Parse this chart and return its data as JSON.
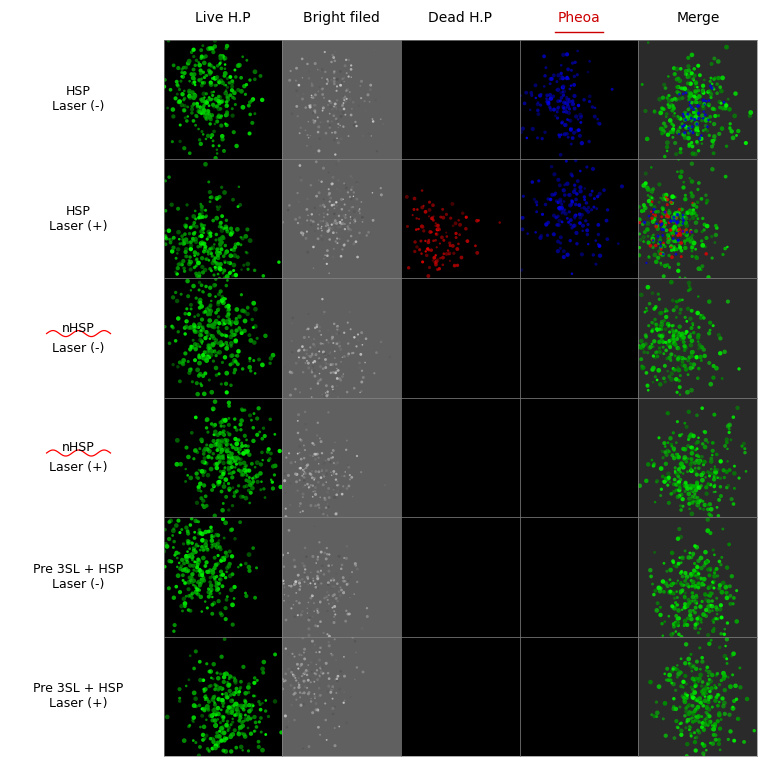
{
  "col_headers": [
    "Live H.P",
    "Bright filed",
    "Dead H.P",
    "Pheoa",
    "Merge"
  ],
  "row_labels": [
    {
      "text": "HSP\nLaser (-)",
      "underline": false
    },
    {
      "text": "HSP\nLaser (+)",
      "underline": false
    },
    {
      "text": "nHSP\nLaser (-)",
      "underline": true
    },
    {
      "text": "nHSP\nLaser (+)",
      "underline": true
    },
    {
      "text": "Pre 3SL + HSP\nLaser (-)",
      "underline": false
    },
    {
      "text": "Pre 3SL + HSP\nLaser (+)",
      "underline": false
    }
  ],
  "n_rows": 6,
  "n_cols": 5,
  "header_color": "#000000",
  "pheoa_color": "#cc0000",
  "grid_color": "#888888",
  "row_configs": [
    [
      false,
      true,
      false,
      true
    ],
    [
      true,
      true,
      true,
      true
    ],
    [
      false,
      false,
      false,
      false
    ],
    [
      false,
      false,
      false,
      false
    ],
    [
      false,
      false,
      false,
      false
    ],
    [
      false,
      false,
      false,
      false
    ]
  ],
  "seeds": [
    1,
    2,
    3,
    4,
    5,
    6
  ]
}
